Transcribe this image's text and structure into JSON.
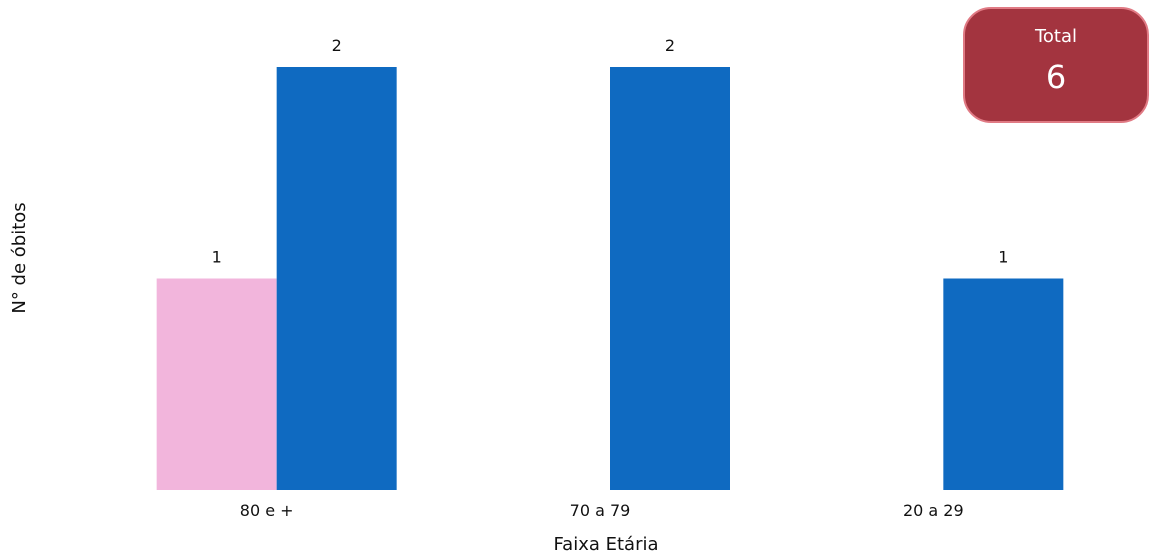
{
  "chart_data": {
    "type": "bar",
    "title": "",
    "xlabel": "Faixa Etária",
    "ylabel": "N° de óbitos",
    "categories": [
      "80 e +",
      "70 a 79",
      "20 a 29"
    ],
    "series": [
      {
        "values": [
          1,
          0,
          0
        ],
        "color": "#f2b5dc"
      },
      {
        "values": [
          2,
          2,
          1
        ],
        "color": "#0f6ac1"
      }
    ],
    "data_labels": [
      [
        1,
        null,
        null
      ],
      [
        2,
        2,
        1
      ]
    ],
    "ylim": [
      0,
      2
    ],
    "grid": false,
    "legend": "none"
  },
  "total": {
    "label": "Total",
    "value": "6",
    "background": "#a3343f",
    "border": "#e07a84"
  }
}
